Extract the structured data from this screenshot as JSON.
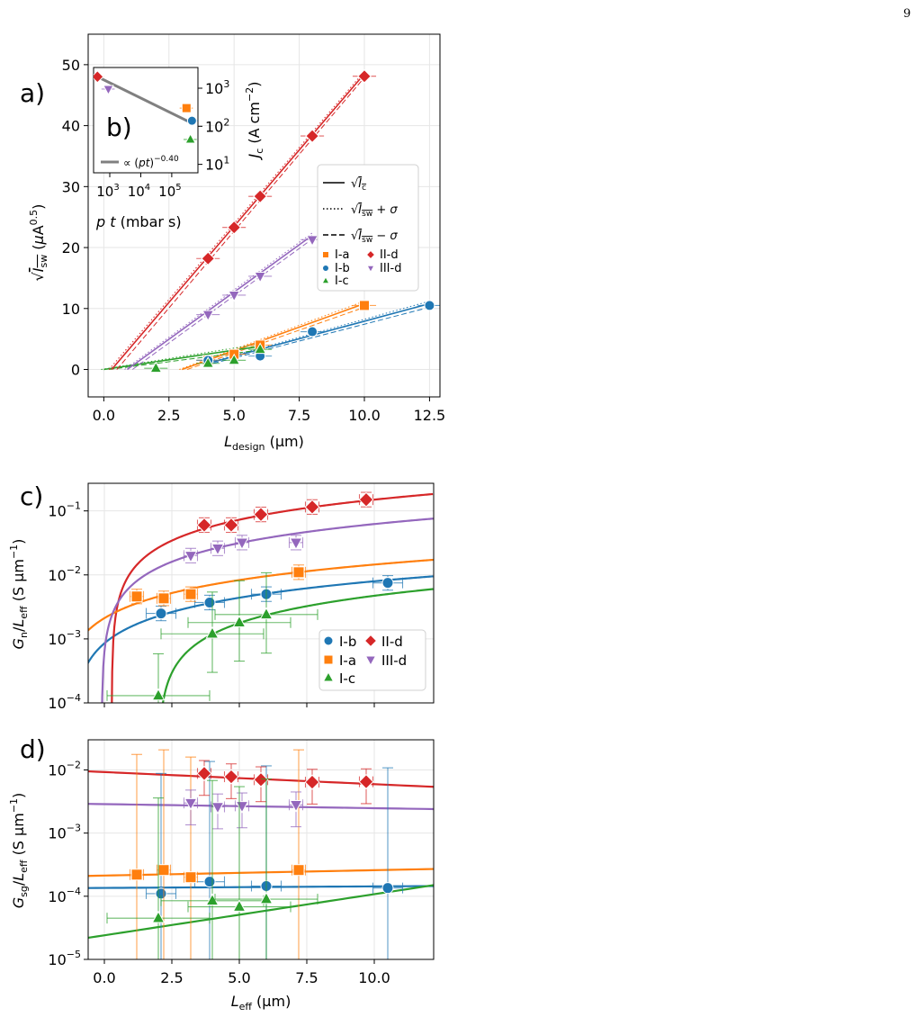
{
  "page_number": "9",
  "colors": {
    "I-a": "#ff7f0e",
    "I-b": "#1f77b4",
    "I-c": "#2ca02c",
    "II-d": "#d62728",
    "III-d": "#9467bd",
    "inset": "#808080"
  },
  "chart_data": [
    {
      "panel": "a)",
      "type": "line",
      "xlabel": "L_design (μm)",
      "ylabel": "√I_sw (μA^0.5)",
      "xlim": [
        -0.6,
        12.9
      ],
      "ylim": [
        -4.5,
        55
      ],
      "xticks": [
        "0.0",
        "2.5",
        "5.0",
        "7.5",
        "10.0",
        "12.5"
      ],
      "yticks": [
        "0",
        "10",
        "20",
        "30",
        "40",
        "50"
      ],
      "grid": true,
      "legend_lines": [
        "√I_c",
        "√I_sw + σ",
        "√I_sw − σ"
      ],
      "legend_placement": "right",
      "series": [
        {
          "name": "I-a",
          "marker": "square",
          "x": [
            4,
            5,
            6,
            10
          ],
          "y": [
            1.5,
            2.5,
            4.0,
            10.5
          ],
          "fit": [
            [
              3.0,
              0
            ],
            [
              10.0,
              10.8
            ]
          ]
        },
        {
          "name": "I-b",
          "marker": "circle",
          "x": [
            4,
            6,
            8,
            12.5
          ],
          "y": [
            1.5,
            2.2,
            6.2,
            10.5
          ],
          "fit": [
            [
              4.0,
              1.0
            ],
            [
              12.5,
              10.8
            ]
          ]
        },
        {
          "name": "I-c",
          "marker": "triangle-up",
          "x": [
            2,
            4,
            5,
            6
          ],
          "y": [
            0.2,
            1.0,
            1.5,
            3.3
          ],
          "fit": [
            [
              0.0,
              0.0
            ],
            [
              6.0,
              3.8
            ]
          ]
        },
        {
          "name": "II-d",
          "marker": "diamond",
          "x": [
            4,
            5,
            6,
            8,
            10
          ],
          "y": [
            18.2,
            23.3,
            28.4,
            38.3,
            48.1
          ],
          "fit": [
            [
              0.3,
              0.0
            ],
            [
              10.0,
              48.5
            ]
          ]
        },
        {
          "name": "III-d",
          "marker": "triangle-down",
          "x": [
            4,
            5,
            6,
            8
          ],
          "y": [
            9.0,
            12.2,
            15.3,
            21.3
          ],
          "fit": [
            [
              0.9,
              0.0
            ],
            [
              8.0,
              22.0
            ]
          ]
        }
      ]
    },
    {
      "panel": "b)",
      "type": "scatter",
      "xlabel": "p t (mbar s)",
      "ylabel": "J_c (A cm^−2)",
      "xscale": "log",
      "yscale": "log",
      "xticks": [
        "10^3",
        "10^4",
        "10^5"
      ],
      "yticks": [
        "10^1",
        "10^2",
        "10^3"
      ],
      "xlim": [
        300,
        700000
      ],
      "ylim": [
        6,
        3500
      ],
      "fit_label": "∝ (pt)^−0.40",
      "fit_exponent": -0.4,
      "points": [
        {
          "name": "II-d",
          "marker": "diamond",
          "x": 400,
          "y": 2000
        },
        {
          "name": "III-d",
          "marker": "triangle-down",
          "x": 900,
          "y": 950
        },
        {
          "name": "I-a",
          "marker": "square",
          "x": 300000,
          "y": 300
        },
        {
          "name": "I-b",
          "marker": "circle",
          "x": 450000,
          "y": 140
        },
        {
          "name": "I-c",
          "marker": "triangle-up",
          "x": 400000,
          "y": 45
        }
      ]
    },
    {
      "panel": "c)",
      "type": "scatter",
      "xlabel": "",
      "ylabel": "G_n/L_eff (S μm^−1)",
      "yscale": "log",
      "xlim": [
        -0.6,
        12.2
      ],
      "ylim": [
        0.0001,
        0.27
      ],
      "yticks": [
        "10^−4",
        "10^−3",
        "10^−2",
        "10^−1"
      ],
      "grid": true,
      "legend_placement": "lower right",
      "legend_order": [
        "I-b",
        "II-d",
        "I-a",
        "III-d",
        "I-c"
      ],
      "series": [
        {
          "name": "I-b",
          "marker": "circle",
          "x": [
            2.1,
            3.9,
            6.0,
            10.5
          ],
          "y": [
            0.0025,
            0.0037,
            0.005,
            0.0075
          ],
          "model": {
            "a": 0.00071,
            "b": -1.2
          }
        },
        {
          "name": "II-d",
          "marker": "diamond",
          "x": [
            3.7,
            4.7,
            5.8,
            7.7,
            9.7
          ],
          "y": [
            0.06,
            0.06,
            0.088,
            0.115,
            0.15
          ],
          "model": {
            "a": 0.0154,
            "b": 0.27
          }
        },
        {
          "name": "I-a",
          "marker": "square",
          "x": [
            1.2,
            2.2,
            3.2,
            7.2
          ],
          "y": [
            0.0046,
            0.0043,
            0.005,
            0.011
          ],
          "model": {
            "a": 0.00124,
            "b": -1.7
          }
        },
        {
          "name": "III-d",
          "marker": "triangle-down",
          "x": [
            3.2,
            4.2,
            5.1,
            7.1
          ],
          "y": [
            0.02,
            0.026,
            0.032,
            0.032
          ],
          "model": {
            "a": 0.00617,
            "b": -0.1
          }
        },
        {
          "name": "I-c",
          "marker": "triangle-up",
          "x": [
            2.0,
            4.0,
            5.0,
            6.0
          ],
          "y": [
            0.00013,
            0.0012,
            0.0018,
            0.0024
          ],
          "model": {
            "a": 0.00059,
            "b": 2.0
          }
        }
      ]
    },
    {
      "panel": "d)",
      "type": "scatter",
      "xlabel": "L_eff (μm)",
      "ylabel": "G_sg/L_eff (S μm^−1)",
      "yscale": "log",
      "xlim": [
        -0.6,
        12.2
      ],
      "ylim": [
        1e-05,
        0.03
      ],
      "xticks": [
        "0.0",
        "2.5",
        "5.0",
        "7.5",
        "10.0"
      ],
      "yticks": [
        "10^−5",
        "10^−4",
        "10^−3",
        "10^−2"
      ],
      "grid": true,
      "series": [
        {
          "name": "I-b",
          "marker": "circle",
          "x": [
            2.1,
            3.9,
            6.0,
            10.5
          ],
          "y": [
            0.00011,
            0.00017,
            0.000145,
            0.000135
          ],
          "fit": [
            0.000135,
            0.000145
          ]
        },
        {
          "name": "II-d",
          "marker": "diamond",
          "x": [
            3.7,
            4.7,
            5.8,
            7.7,
            9.7
          ],
          "y": [
            0.0088,
            0.0078,
            0.007,
            0.0064,
            0.0065
          ],
          "fit": [
            0.0095,
            0.0054
          ]
        },
        {
          "name": "I-a",
          "marker": "square",
          "x": [
            1.2,
            2.2,
            3.2,
            7.2
          ],
          "y": [
            0.00022,
            0.00026,
            0.0002,
            0.00026
          ],
          "fit": [
            0.00021,
            0.00027
          ]
        },
        {
          "name": "III-d",
          "marker": "triangle-down",
          "x": [
            3.2,
            4.2,
            5.1,
            7.1
          ],
          "y": [
            0.003,
            0.0026,
            0.0027,
            0.0028
          ],
          "fit": [
            0.0029,
            0.0024
          ]
        },
        {
          "name": "I-c",
          "marker": "triangle-up",
          "x": [
            2.0,
            4.0,
            5.0,
            6.0
          ],
          "y": [
            4.5e-05,
            8.5e-05,
            6.8e-05,
            9e-05
          ],
          "fit": [
            2.2e-05,
            0.00015
          ]
        }
      ]
    }
  ]
}
